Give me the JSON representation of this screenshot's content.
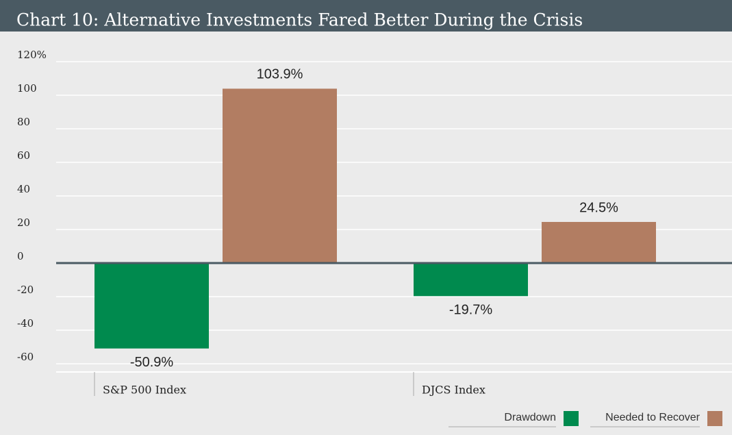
{
  "chart_data": {
    "type": "bar",
    "title": "Chart 10: Alternative Investments Fared Better During the Crisis",
    "categories": [
      "S&P 500 Index",
      "DJCS Index"
    ],
    "series": [
      {
        "name": "Drawdown",
        "color": "#008a4e",
        "values": [
          -50.9,
          -19.7
        ],
        "value_labels": [
          "-50.9%",
          "-19.7%"
        ]
      },
      {
        "name": "Needed to Recover",
        "color": "#b27d62",
        "values": [
          103.9,
          24.5
        ],
        "value_labels": [
          "103.9%",
          "24.5%"
        ]
      }
    ],
    "ylim": [
      -60,
      120
    ],
    "yticks": [
      -60,
      -40,
      -20,
      0,
      20,
      40,
      60,
      80,
      100,
      {
        "value": 120,
        "label": "120%"
      }
    ],
    "grid": true,
    "legend": "bottom-right"
  }
}
